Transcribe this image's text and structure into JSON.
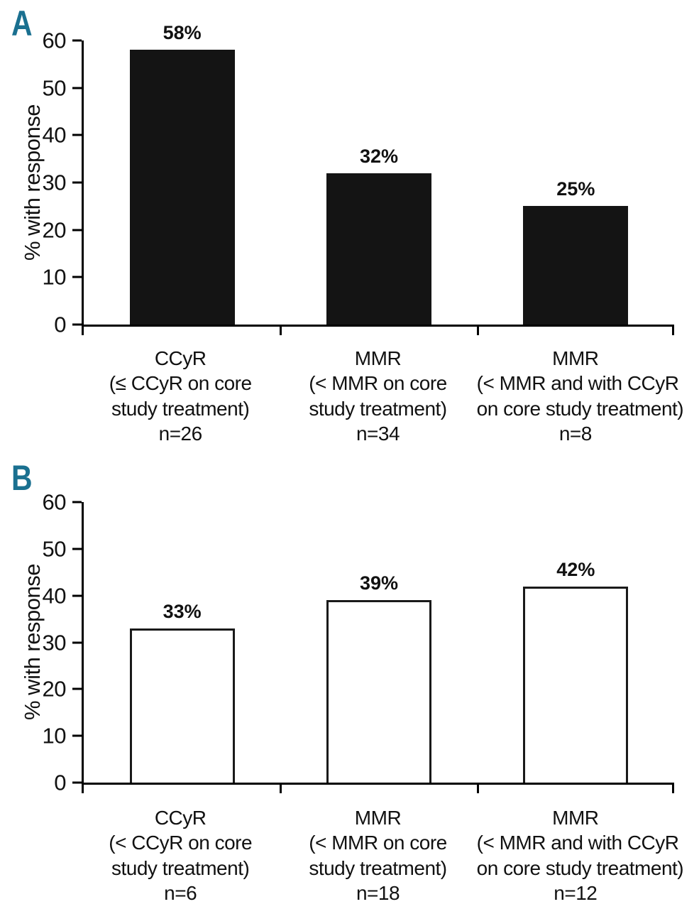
{
  "figure": {
    "background": "#ffffff",
    "accent_color": "#1a7090",
    "text_color": "#111111"
  },
  "chart_data": [
    {
      "type": "bar",
      "panel_label": "A",
      "title": "",
      "xlabel": "",
      "ylabel": "% with response",
      "ylim": [
        0,
        60
      ],
      "yticks": [
        60,
        50,
        40,
        30,
        20,
        10,
        0
      ],
      "grid": false,
      "legend": false,
      "bar_style": {
        "fill": "#141414",
        "stroke": "#141414"
      },
      "values": [
        58,
        32,
        25
      ],
      "value_labels": [
        "58%",
        "32%",
        "25%"
      ],
      "n_values": [
        26,
        34,
        8
      ],
      "categories": [
        [
          "CCyR",
          "(≤ CCyR on core",
          "study treatment)",
          "n=26"
        ],
        [
          "MMR",
          "(< MMR on core",
          "study treatment)",
          "n=34"
        ],
        [
          "MMR",
          "(< MMR and with CCyR",
          "on core study treatment)",
          "n=8"
        ]
      ]
    },
    {
      "type": "bar",
      "panel_label": "B",
      "title": "",
      "xlabel": "",
      "ylabel": "% with response",
      "ylim": [
        0,
        60
      ],
      "yticks": [
        60,
        50,
        40,
        30,
        20,
        10,
        0
      ],
      "grid": false,
      "legend": false,
      "bar_style": {
        "fill": "#ffffff",
        "stroke": "#1a1a1a"
      },
      "values": [
        33,
        39,
        42
      ],
      "value_labels": [
        "33%",
        "39%",
        "42%"
      ],
      "n_values": [
        6,
        18,
        12
      ],
      "categories": [
        [
          "CCyR",
          "(< CCyR on core",
          "study treatment)",
          "n=6"
        ],
        [
          "MMR",
          "(< MMR on core",
          "study treatment)",
          "n=18"
        ],
        [
          "MMR",
          "(< MMR and with CCyR",
          "on core study treatment)",
          "n=12"
        ]
      ]
    }
  ]
}
